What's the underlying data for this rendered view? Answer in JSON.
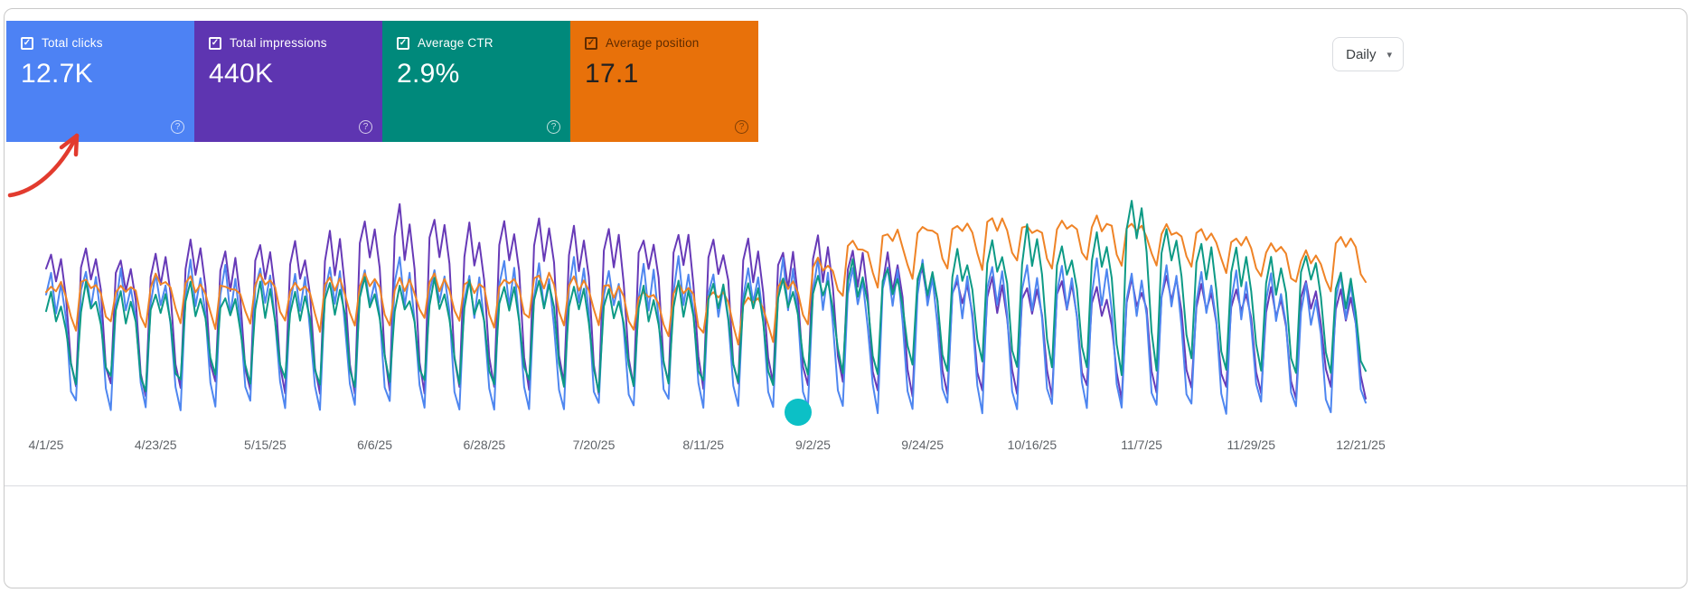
{
  "header": {
    "granularity_label": "Daily"
  },
  "icons": {
    "check": "✓",
    "help": "?",
    "caret": "▾"
  },
  "metric_cards": [
    {
      "label": "Total clicks",
      "value": "12.7K",
      "bg": "#4d82f4",
      "label_color": "#ffffff",
      "value_color": "#ffffff",
      "icon_color": "rgba(255,255,255,0.75)"
    },
    {
      "label": "Total impressions",
      "value": "440K",
      "bg": "#5e35b1",
      "label_color": "#ffffff",
      "value_color": "#ffffff",
      "icon_color": "rgba(255,255,255,0.75)"
    },
    {
      "label": "Average CTR",
      "value": "2.9%",
      "bg": "#00897b",
      "label_color": "#ffffff",
      "value_color": "#ffffff",
      "icon_color": "rgba(255,255,255,0.75)"
    },
    {
      "label": "Average position",
      "value": "17.1",
      "bg": "#e8710a",
      "label_color": "#5f2b00",
      "value_color": "#202124",
      "icon_color": "rgba(0,0,0,0.45)"
    }
  ],
  "annotations": {
    "arrow_color": "#e23b2e",
    "dot_color": "#0cc0c6",
    "dot_day": 151,
    "dot_value": 2
  },
  "chart_data": {
    "type": "line",
    "x_tick_labels": [
      "4/1/25",
      "4/23/25",
      "5/15/25",
      "6/6/25",
      "6/28/25",
      "7/20/25",
      "8/11/25",
      "9/2/25",
      "9/24/25",
      "10/16/25",
      "11/7/25",
      "11/29/25",
      "12/21/25"
    ],
    "tick_interval_days": 22,
    "weeks": 38,
    "days_per_week": 7,
    "ylim": [
      0,
      100
    ],
    "y_units": "percent of chart height (no y-axis labels shown in UI)",
    "grid": false,
    "legend_position": "metric cards above chart act as legend",
    "jitter_seed": 20250401,
    "draw_order": [
      1,
      0,
      3,
      2
    ],
    "series": [
      {
        "name": "Total clicks",
        "color": "#4e86f0",
        "jitter": 3,
        "weekday_profile": [
          0.8,
          1.0,
          0.7,
          0.92,
          0.62,
          0.15,
          0.02
        ],
        "weekly_peaks": [
          66,
          68,
          64,
          67,
          70,
          66,
          68,
          65,
          70,
          67,
          72,
          69,
          66,
          70,
          68,
          71,
          67,
          69,
          70,
          66,
          68,
          71,
          69,
          67,
          70,
          68,
          66,
          69,
          71,
          68,
          70,
          67,
          69,
          66,
          64,
          62,
          60,
          65
        ],
        "weekly_troughs": [
          4,
          3,
          5,
          2,
          4,
          3,
          5,
          4,
          2,
          5,
          3,
          4,
          2,
          5,
          3,
          4,
          2,
          4,
          5,
          3,
          4,
          2,
          5,
          3,
          4,
          5,
          3,
          2,
          4,
          3,
          5,
          4,
          2,
          3,
          5,
          4,
          2,
          4
        ]
      },
      {
        "name": "Total impressions",
        "color": "#673ab7",
        "jitter": 3,
        "weekday_profile": [
          0.85,
          1.0,
          0.76,
          0.94,
          0.7,
          0.22,
          0.05
        ],
        "weekly_peaks": [
          74,
          77,
          73,
          76,
          78,
          75,
          80,
          77,
          82,
          88,
          94,
          90,
          86,
          88,
          91,
          87,
          84,
          82,
          85,
          80,
          78,
          77,
          80,
          76,
          72,
          68,
          64,
          62,
          60,
          63,
          58,
          62,
          65,
          60,
          58,
          56,
          60,
          57
        ],
        "weekly_troughs": [
          8,
          10,
          7,
          9,
          11,
          8,
          10,
          9,
          7,
          10,
          8,
          11,
          9,
          8,
          10,
          7,
          9,
          10,
          8,
          11,
          9,
          8,
          10,
          7,
          9,
          8,
          10,
          9,
          7,
          10,
          8,
          9,
          11,
          8,
          10,
          7,
          9,
          8
        ]
      },
      {
        "name": "Average CTR",
        "color": "#0d9a85",
        "jitter": 3,
        "weekday_profile": [
          0.82,
          1.0,
          0.74,
          0.92,
          0.68,
          0.25,
          0.08
        ],
        "weekly_peaks": [
          56,
          58,
          55,
          57,
          58,
          56,
          59,
          57,
          60,
          62,
          58,
          61,
          59,
          60,
          63,
          61,
          58,
          57,
          60,
          62,
          59,
          63,
          66,
          70,
          68,
          72,
          76,
          80,
          84,
          78,
          82,
          100,
          86,
          80,
          76,
          72,
          74,
          65
        ],
        "weekly_troughs": [
          10,
          12,
          9,
          11,
          13,
          10,
          12,
          11,
          9,
          12,
          10,
          13,
          11,
          10,
          12,
          9,
          11,
          12,
          10,
          13,
          11,
          14,
          16,
          15,
          17,
          16,
          18,
          17,
          15,
          18,
          16,
          17,
          19,
          16,
          18,
          15,
          17,
          14
        ]
      },
      {
        "name": "Average position",
        "color": "#ef8326",
        "jitter": 2,
        "weekday_profile": [
          0.9,
          1.0,
          0.84,
          0.96,
          0.8,
          0.45,
          0.28
        ],
        "weekly_peaks": [
          60,
          62,
          61,
          63,
          62,
          60,
          63,
          61,
          62,
          64,
          61,
          63,
          62,
          63,
          65,
          62,
          60,
          58,
          60,
          57,
          55,
          62,
          70,
          78,
          84,
          87,
          88,
          90,
          87,
          89,
          90,
          88,
          86,
          84,
          82,
          78,
          74,
          80
        ],
        "weekly_troughs": [
          33,
          35,
          32,
          34,
          33,
          35,
          34,
          32,
          35,
          33,
          36,
          34,
          33,
          35,
          32,
          34,
          31,
          29,
          27,
          25,
          28,
          36,
          46,
          52,
          56,
          58,
          60,
          62,
          61,
          63,
          62,
          60,
          59,
          58,
          54,
          52,
          50,
          54
        ]
      }
    ]
  }
}
